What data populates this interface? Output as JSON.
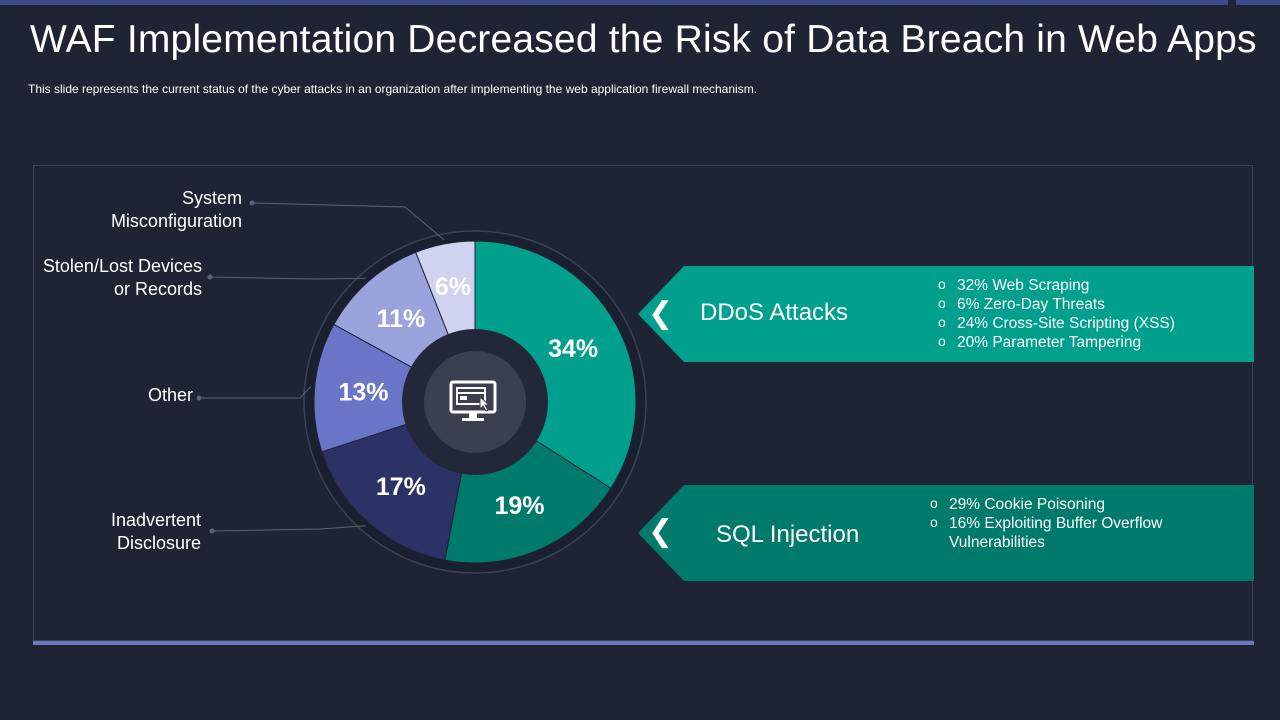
{
  "header": {
    "title": "WAF Implementation Decreased the Risk of Data Breach in Web Apps",
    "subtitle": "This slide represents the current status of the cyber attacks in an organization after implementing the web application firewall mechanism."
  },
  "chart_data": {
    "type": "pie",
    "title": "",
    "center_icon": "monitor-cursor-icon",
    "slices": [
      {
        "value": 34,
        "label": "34%",
        "category": "DDoS Attacks",
        "color": "#00a08c"
      },
      {
        "value": 19,
        "label": "19%",
        "category": "SQL Injection",
        "color": "#007a6a"
      },
      {
        "value": 17,
        "label": "17%",
        "category": "Inadvertent Disclosure",
        "color": "#2c3166"
      },
      {
        "value": 13,
        "label": "13%",
        "category": "Other",
        "color": "#6a75c8"
      },
      {
        "value": 11,
        "label": "11%",
        "category": "Stolen/Lost Devices or Records",
        "color": "#9ba3dc"
      },
      {
        "value": 6,
        "label": "6%",
        "category": "System Misconfiguration",
        "color": "#d0d3f0"
      }
    ],
    "left_labels": [
      {
        "lines": [
          "System",
          "Misconfiguration"
        ],
        "slice": 5
      },
      {
        "lines": [
          "Stolen/Lost Devices",
          "or Records"
        ],
        "slice": 4
      },
      {
        "lines": [
          "Other"
        ],
        "slice": 3
      },
      {
        "lines": [
          "Inadvertent",
          "Disclosure"
        ],
        "slice": 2
      }
    ]
  },
  "callouts": [
    {
      "title": "DDoS Attacks",
      "color": "#00a08c",
      "items": [
        "32% Web Scraping",
        "6% Zero-Day Threats",
        "24% Cross-Site Scripting (XSS)",
        "20% Parameter Tampering"
      ]
    },
    {
      "title": "SQL Injection",
      "color": "#007a6a",
      "items": [
        "29% Cookie Poisoning",
        "16% Exploiting Buffer Overflow Vulnerabilities"
      ]
    }
  ],
  "icons": {
    "chevron": "❮"
  }
}
